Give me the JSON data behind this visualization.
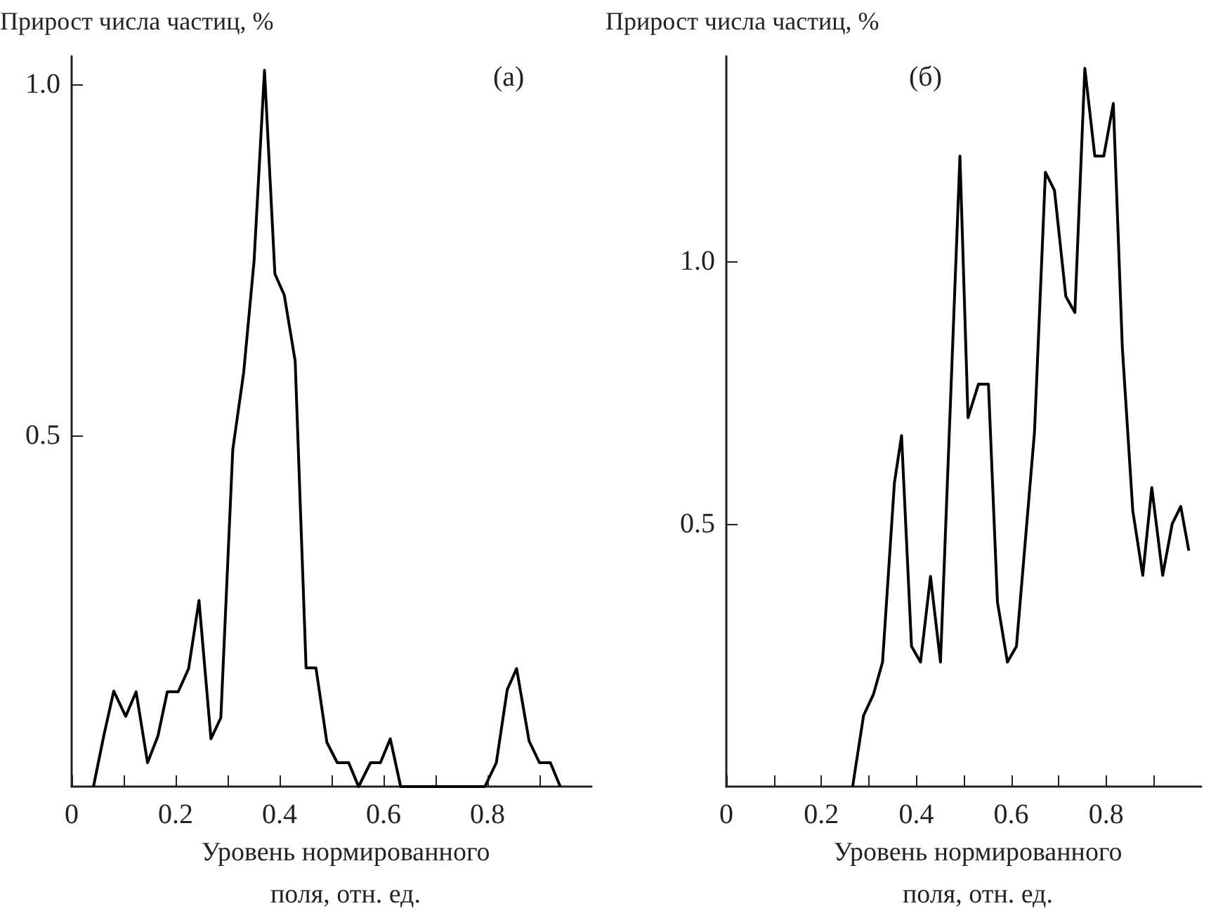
{
  "chart_data": [
    {
      "type": "line",
      "ylabel": "Прирост числа частиц, %",
      "xlabel": "Уровень нормированного поля, отн. ед.",
      "annotations": [
        "(а)"
      ],
      "color": "#000000",
      "x": [
        0.042,
        0.062,
        0.081,
        0.104,
        0.124,
        0.146,
        0.166,
        0.184,
        0.205,
        0.225,
        0.245,
        0.268,
        0.287,
        0.31,
        0.331,
        0.351,
        0.371,
        0.391,
        0.409,
        0.43,
        0.451,
        0.47,
        0.491,
        0.511,
        0.533,
        0.552,
        0.575,
        0.594,
        0.613,
        0.633,
        0.795,
        0.817,
        0.838,
        0.856,
        0.88,
        0.9,
        0.921,
        0.94
      ],
      "values": [
        0,
        0.073,
        0.136,
        0.1,
        0.135,
        0.034,
        0.072,
        0.135,
        0.135,
        0.168,
        0.265,
        0.068,
        0.098,
        0.48,
        0.59,
        0.749,
        1.02,
        0.73,
        0.7,
        0.606,
        0.169,
        0.169,
        0.063,
        0.034,
        0.034,
        0,
        0.034,
        0.034,
        0.068,
        0,
        0,
        0.034,
        0.138,
        0.168,
        0.065,
        0.034,
        0.034,
        0
      ],
      "xlim": [
        0,
        1
      ],
      "ylim": [
        0,
        1.04
      ],
      "xticks": [
        0,
        {
          "value": 0.1,
          "label": null
        },
        0.2,
        {
          "value": 0.3,
          "label": null
        },
        0.4,
        {
          "value": 0.5,
          "label": null
        },
        0.6,
        {
          "value": 0.7,
          "label": null
        },
        0.8,
        {
          "value": 0.9,
          "label": null
        }
      ],
      "yticks": [
        0.5,
        {
          "value": 1,
          "label": "1.0"
        }
      ]
    },
    {
      "type": "line",
      "ylabel": "Прирост числа частиц, %",
      "xlabel": "Уровень нормированного поля, отн. ед.",
      "annotations": [
        "(б)"
      ],
      "color": "#000000",
      "x": [
        0.266,
        0.289,
        0.31,
        0.329,
        0.354,
        0.369,
        0.39,
        0.409,
        0.43,
        0.451,
        0.492,
        0.509,
        0.531,
        0.552,
        0.571,
        0.592,
        0.611,
        0.649,
        0.672,
        0.691,
        0.715,
        0.734,
        0.755,
        0.776,
        0.795,
        0.815,
        0.834,
        0.856,
        0.877,
        0.896,
        0.919,
        0.939,
        0.957,
        0.974
      ],
      "values": [
        0,
        0.135,
        0.176,
        0.237,
        0.578,
        0.668,
        0.267,
        0.237,
        0.4,
        0.237,
        1.2,
        0.702,
        0.766,
        0.766,
        0.351,
        0.237,
        0.267,
        0.675,
        1.169,
        1.135,
        0.933,
        0.902,
        1.367,
        1.2,
        1.2,
        1.3,
        0.835,
        0.525,
        0.402,
        0.569,
        0.402,
        0.5,
        0.533,
        0.449
      ],
      "xlim": [
        0,
        1
      ],
      "ylim": [
        0,
        1.39
      ],
      "xticks": [
        0,
        {
          "value": 0.1,
          "label": null
        },
        0.2,
        {
          "value": 0.3,
          "label": null
        },
        0.4,
        {
          "value": 0.5,
          "label": null
        },
        0.6,
        {
          "value": 0.7,
          "label": null
        },
        0.8,
        {
          "value": 0.9,
          "label": null
        }
      ],
      "yticks": [
        0.5,
        {
          "value": 1,
          "label": "1.0"
        }
      ]
    }
  ]
}
